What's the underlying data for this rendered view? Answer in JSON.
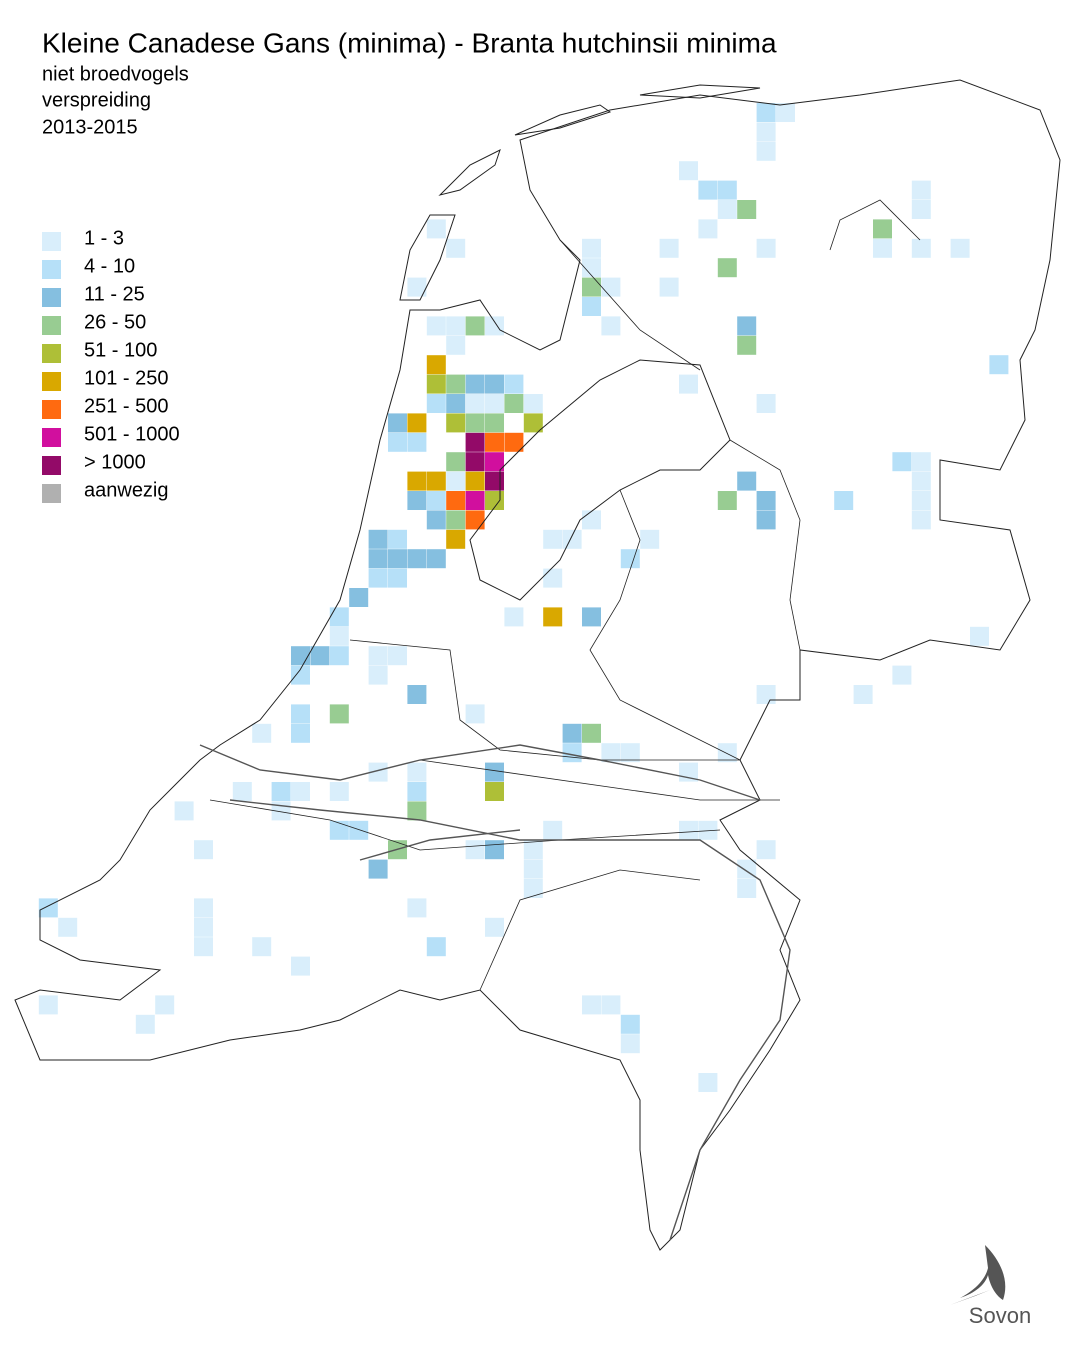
{
  "header": {
    "title": "Kleine Canadese Gans (minima) - Branta hutchinsii minima",
    "subtitle": [
      "niet broedvogels",
      "verspreiding",
      "2013-2015"
    ]
  },
  "legend": [
    {
      "label": "1 - 3",
      "color": "#d9eefb"
    },
    {
      "label": "4 - 10",
      "color": "#b6e0f8"
    },
    {
      "label": "11 - 25",
      "color": "#85bfe0"
    },
    {
      "label": "26 - 50",
      "color": "#98cc92"
    },
    {
      "label": "51 - 100",
      "color": "#aebf37"
    },
    {
      "label": "101 - 250",
      "color": "#d9a800"
    },
    {
      "label": "251 - 500",
      "color": "#ff6a10"
    },
    {
      "label": "501 - 1000",
      "color": "#d10f9e"
    },
    {
      "label": "> 1000",
      "color": "#930a68"
    },
    {
      "label": "aanwezig",
      "color": "#b0b0b0"
    }
  ],
  "logo": {
    "text": "Sovon"
  }
}
